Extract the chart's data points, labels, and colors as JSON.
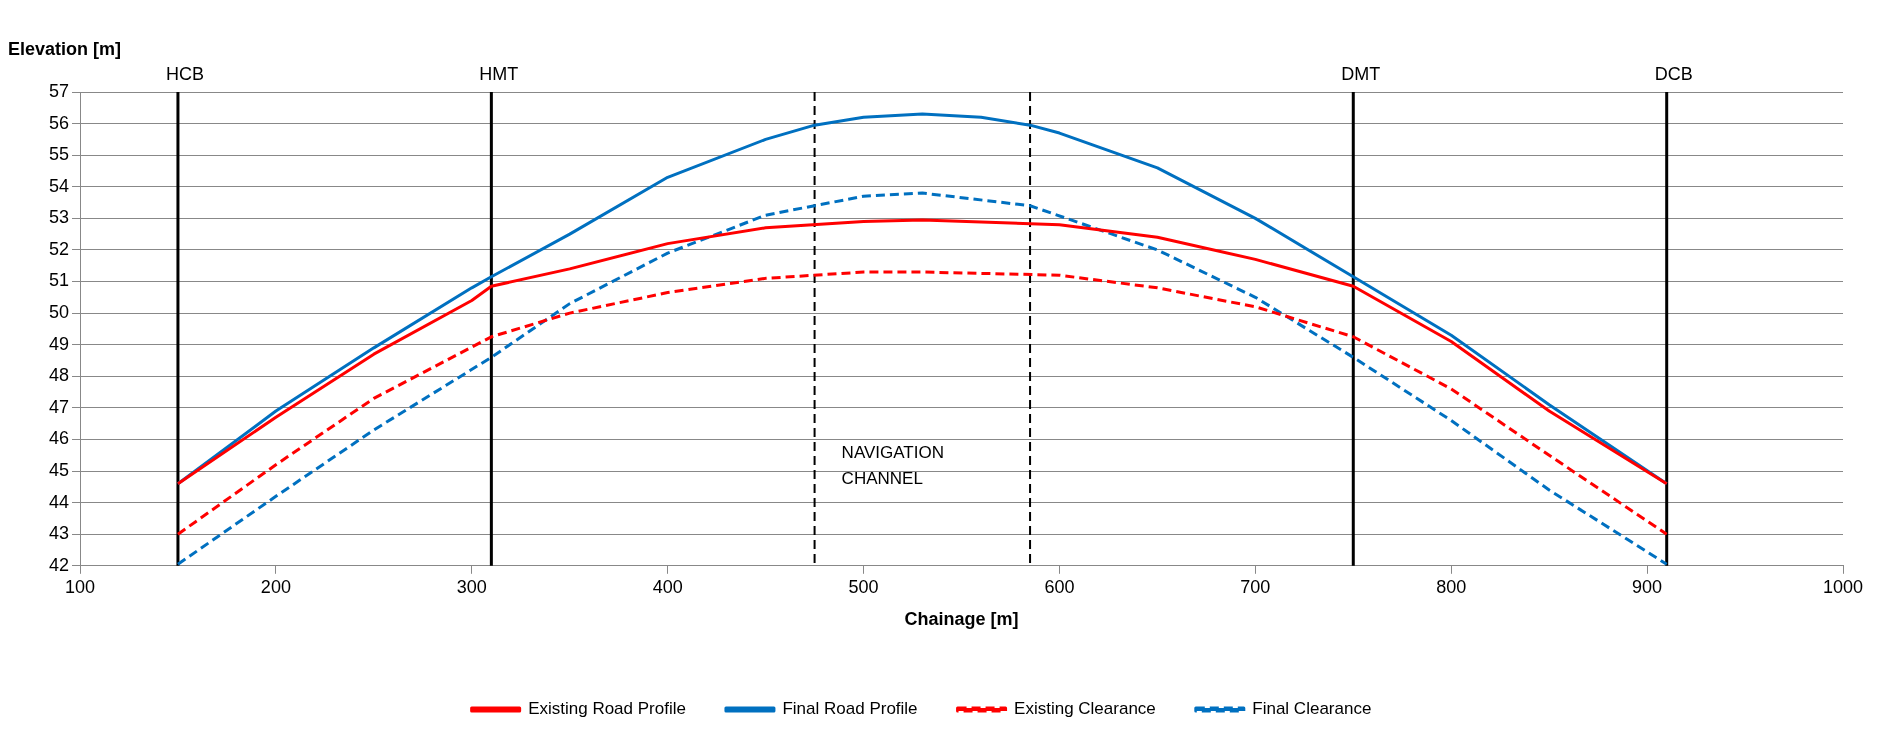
{
  "chart_data": {
    "type": "line",
    "xlabel": "Chainage [m]",
    "ylabel": "Elevation [m]",
    "xlim": [
      100,
      1000
    ],
    "xticks": [
      100,
      200,
      300,
      400,
      500,
      600,
      700,
      800,
      900,
      1000
    ],
    "ylim": [
      42,
      57
    ],
    "yticks": [
      42,
      43,
      44,
      45,
      46,
      47,
      48,
      49,
      50,
      51,
      52,
      53,
      54,
      55,
      56,
      57
    ],
    "grid": "y",
    "legend": "bottom",
    "marker": "none",
    "series": [
      {
        "name": "Existing Road Profile",
        "color": "#ff0000",
        "line_style": "solid",
        "x": [
          150,
          200,
          250,
          300,
          310,
          350,
          400,
          450,
          500,
          530,
          600,
          650,
          700,
          750,
          800,
          850,
          910
        ],
        "values": [
          44.6,
          46.7,
          48.7,
          50.4,
          50.85,
          51.4,
          52.2,
          52.7,
          52.9,
          52.95,
          52.8,
          52.4,
          51.7,
          50.85,
          49.1,
          46.9,
          44.6
        ]
      },
      {
        "name": "Final Road Profile",
        "color": "#0070c0",
        "line_style": "solid",
        "x": [
          150,
          200,
          250,
          300,
          310,
          350,
          400,
          450,
          475,
          500,
          530,
          560,
          585,
          600,
          650,
          700,
          750,
          800,
          850,
          910
        ],
        "values": [
          44.6,
          46.9,
          48.9,
          50.8,
          51.15,
          52.5,
          54.3,
          55.5,
          55.95,
          56.2,
          56.3,
          56.2,
          55.95,
          55.7,
          54.6,
          53.0,
          51.15,
          49.3,
          47.1,
          44.6
        ]
      },
      {
        "name": "Existing Clearance",
        "color": "#ff0000",
        "line_style": "dashed",
        "x": [
          150,
          200,
          250,
          310,
          350,
          400,
          450,
          500,
          530,
          600,
          650,
          700,
          750,
          800,
          850,
          910
        ],
        "values": [
          43.0,
          45.2,
          47.3,
          49.25,
          50.0,
          50.65,
          51.1,
          51.3,
          51.3,
          51.2,
          50.8,
          50.2,
          49.25,
          47.6,
          45.5,
          43.0
        ]
      },
      {
        "name": "Final Clearance",
        "color": "#0070c0",
        "line_style": "dashed",
        "x": [
          150,
          200,
          250,
          310,
          350,
          400,
          450,
          500,
          530,
          585,
          650,
          700,
          750,
          800,
          850,
          910
        ],
        "values": [
          42.05,
          44.2,
          46.3,
          48.6,
          50.3,
          51.9,
          53.1,
          53.7,
          53.8,
          53.4,
          52.0,
          50.5,
          48.6,
          46.6,
          44.4,
          42.05
        ]
      }
    ],
    "ref_lines": [
      {
        "axis": "x",
        "value": 150,
        "label": "HCB",
        "color": "#000000",
        "line_style": "solid"
      },
      {
        "axis": "x",
        "value": 310,
        "label": "HMT",
        "color": "#000000",
        "line_style": "solid"
      },
      {
        "axis": "x",
        "value": 750,
        "label": "DMT",
        "color": "#000000",
        "line_style": "solid"
      },
      {
        "axis": "x",
        "value": 910,
        "label": "DCB",
        "color": "#000000",
        "line_style": "solid"
      },
      {
        "axis": "x",
        "value": 475,
        "label": null,
        "color": "#000000",
        "line_style": "dashed"
      },
      {
        "axis": "x",
        "value": 585,
        "label": null,
        "color": "#000000",
        "line_style": "dashed"
      }
    ],
    "annotations": [
      "NAVIGATION CHANNEL"
    ]
  }
}
